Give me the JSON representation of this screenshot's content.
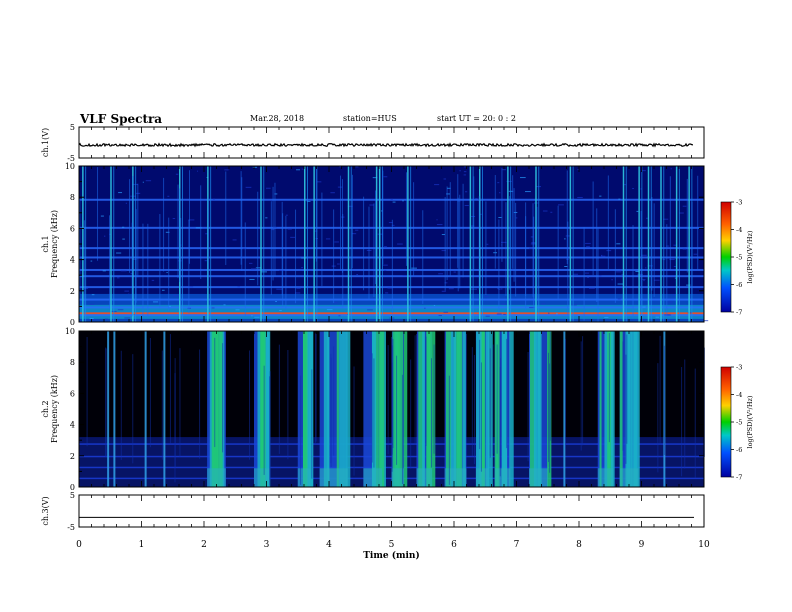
{
  "header": {
    "title": "VLF Spectra",
    "date": "Mar.28, 2018",
    "station": "station=HUS",
    "start": "start  UT  =   20: 0  : 2"
  },
  "chart_data": [
    {
      "type": "line",
      "panel": "ch1-waveform",
      "ylabel": "ch.1(V)",
      "ylim": [
        -5,
        5
      ],
      "yticks": [
        "5",
        "-5"
      ],
      "baseline": -0.8,
      "noise_amplitude": 0.4
    },
    {
      "type": "heatmap",
      "panel": "ch1-spectrogram",
      "ylabel_line1": "ch.1",
      "ylabel_line2": "Frequency  (kHz)",
      "ylim": [
        0,
        10
      ],
      "yticks": [
        "0",
        "2",
        "4",
        "6",
        "8",
        "10"
      ],
      "colorbar": {
        "label": "log(PSD)(V²/Hz)",
        "range": [
          -7,
          -3
        ],
        "ticks": [
          "-3",
          "-4",
          "-5",
          "-6",
          "-7"
        ]
      },
      "background": "dark-blue",
      "bright_times_min": [
        0.05,
        0.5,
        0.85,
        1.6,
        2.05,
        2.9,
        3.6,
        3.75,
        4.3,
        4.75,
        4.8,
        5.25,
        6.25,
        6.4,
        6.85,
        7.3,
        7.85,
        8.7,
        8.95,
        9.1,
        9.3,
        9.55,
        9.75
      ],
      "band_freqs_khz": [
        0.5,
        1.0,
        1.5,
        2.3,
        3.0,
        3.4,
        4.2,
        4.8,
        6.1,
        7.9
      ]
    },
    {
      "type": "heatmap",
      "panel": "ch2-spectrogram",
      "ylabel_line1": "ch.2",
      "ylabel_line2": "Frequency  (kHz)",
      "ylim": [
        0,
        10
      ],
      "yticks": [
        "0",
        "2",
        "4",
        "6",
        "8",
        "10"
      ],
      "colorbar": {
        "label": "log(PSD)(V²/Hz)",
        "range": [
          -7,
          -3
        ],
        "ticks": [
          "-3",
          "-4",
          "-5",
          "-6",
          "-7"
        ]
      },
      "background": "black",
      "active_intervals_min": [
        [
          2.05,
          2.35
        ],
        [
          2.8,
          3.05
        ],
        [
          3.5,
          3.7
        ],
        [
          3.85,
          4.3
        ],
        [
          4.55,
          4.85
        ],
        [
          5.0,
          5.2
        ],
        [
          5.4,
          5.65
        ],
        [
          5.85,
          6.2
        ],
        [
          6.35,
          6.55
        ],
        [
          6.65,
          6.9
        ],
        [
          7.2,
          7.5
        ],
        [
          8.3,
          8.55
        ],
        [
          8.65,
          8.95
        ]
      ],
      "bright_times_min": [
        0.45,
        0.55,
        1.05,
        1.35,
        7.75,
        9.35
      ]
    },
    {
      "type": "line",
      "panel": "ch3-waveform",
      "ylabel": "ch.3(V)",
      "ylim": [
        -5,
        5
      ],
      "yticks": [
        "5",
        "-5"
      ],
      "baseline": -2.0,
      "noise_amplitude": 0
    }
  ],
  "xaxis": {
    "label": "Time  (min)",
    "range": [
      0,
      10
    ],
    "ticks": [
      "0",
      "1",
      "2",
      "3",
      "4",
      "5",
      "6",
      "7",
      "8",
      "9",
      "10"
    ]
  },
  "colors": {
    "cb_stops": [
      "#d00000",
      "#ff6000",
      "#ffd000",
      "#00d000",
      "#00c8c8",
      "#0050ff",
      "#0000a0"
    ]
  }
}
